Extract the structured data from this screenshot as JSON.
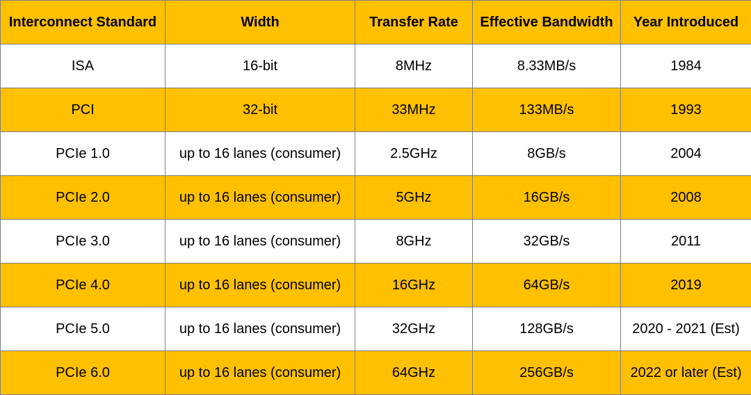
{
  "colors": {
    "highlight": "#ffc000",
    "plain": "#ffffff",
    "border": "#7f7f7f"
  },
  "chart_data": {
    "type": "table",
    "columns": [
      "Interconnect Standard",
      "Width",
      "Transfer Rate",
      "Effective Bandwidth",
      "Year Introduced"
    ],
    "rows": [
      [
        "ISA",
        "16-bit",
        "8MHz",
        "8.33MB/s",
        "1984"
      ],
      [
        "PCI",
        "32-bit",
        "33MHz",
        "133MB/s",
        "1993"
      ],
      [
        "PCIe 1.0",
        "up to 16 lanes (consumer)",
        "2.5GHz",
        "8GB/s",
        "2004"
      ],
      [
        "PCIe 2.0",
        "up to 16 lanes (consumer)",
        "5GHz",
        "16GB/s",
        "2008"
      ],
      [
        "PCIe 3.0",
        "up to 16 lanes (consumer)",
        "8GHz",
        "32GB/s",
        "2011"
      ],
      [
        "PCIe 4.0",
        "up to 16 lanes (consumer)",
        "16GHz",
        "64GB/s",
        "2019"
      ],
      [
        "PCIe 5.0",
        "up to 16 lanes (consumer)",
        "32GHz",
        "128GB/s",
        "2020 - 2021 (Est)"
      ],
      [
        "PCIe 6.0",
        "up to 16 lanes (consumer)",
        "64GHz",
        "256GB/s",
        "2022 or later (Est)"
      ]
    ]
  }
}
